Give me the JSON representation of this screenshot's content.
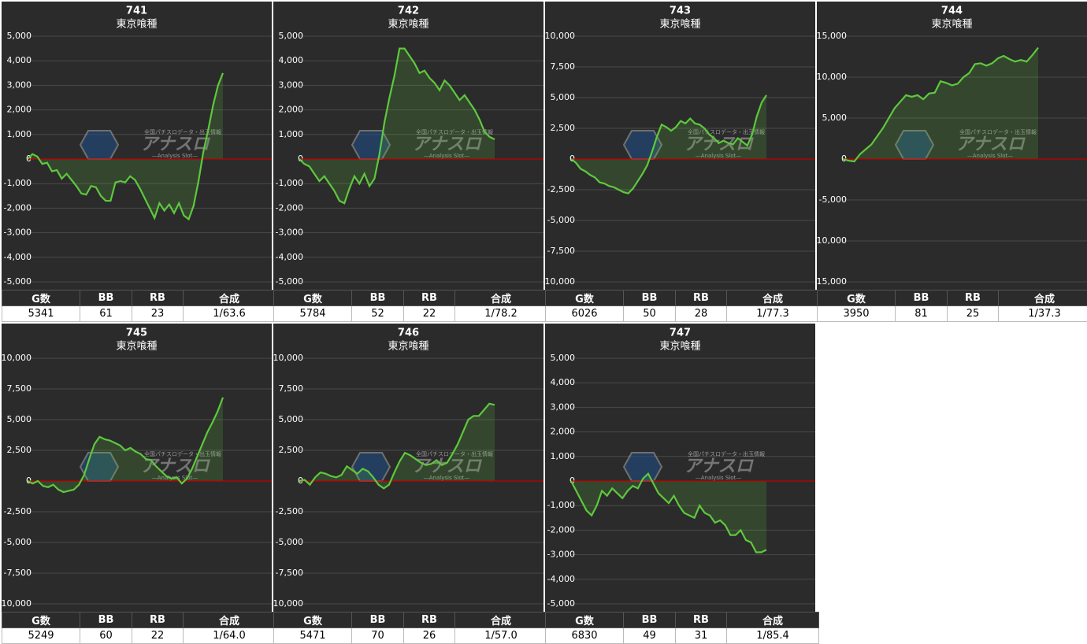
{
  "watermark": {
    "title": "アナスロ",
    "tagline": "全国パチスロデータ・出玉情報",
    "sub": "—Analysis Slot—"
  },
  "chart_data": [
    {
      "type": "line",
      "title": "741",
      "subtitle": "東京喰種",
      "color": "#5ec83e",
      "zero_color": "#c00000",
      "grid": true,
      "ylim": [
        -5000,
        5000
      ],
      "yticks": [
        {
          "value": -5000,
          "label": "-5,000"
        },
        {
          "value": -4000,
          "label": "-4,000"
        },
        {
          "value": -3000,
          "label": "-3,000"
        },
        {
          "value": -2000,
          "label": "-2,000"
        },
        {
          "value": -1000,
          "label": "-1,000"
        },
        0,
        {
          "value": 1000,
          "label": "1,000"
        },
        {
          "value": 2000,
          "label": "2,000"
        },
        {
          "value": 3000,
          "label": "3,000"
        },
        {
          "value": 4000,
          "label": "4,000"
        },
        {
          "value": 5000,
          "label": "5,000"
        }
      ],
      "values": [
        0,
        200,
        100,
        -200,
        -150,
        -500,
        -450,
        -800,
        -600,
        -850,
        -1100,
        -1400,
        -1450,
        -1100,
        -1150,
        -1500,
        -1700,
        -1700,
        -950,
        -900,
        -950,
        -700,
        -850,
        -1200,
        -1600,
        -2000,
        -2400,
        -1800,
        -2100,
        -1850,
        -2200,
        -1800,
        -2300,
        -2450,
        -1900,
        -900,
        300,
        1200,
        2200,
        3000,
        3500
      ],
      "table": {
        "columns": [
          "G数",
          "BB",
          "RB",
          "合成"
        ],
        "row": [
          5341,
          61,
          23,
          "1/63.6"
        ]
      }
    },
    {
      "type": "line",
      "title": "742",
      "subtitle": "東京喰種",
      "color": "#5ec83e",
      "zero_color": "#c00000",
      "grid": true,
      "ylim": [
        -5000,
        5000
      ],
      "yticks": [
        {
          "value": -5000,
          "label": "-5,000"
        },
        {
          "value": -4000,
          "label": "-4,000"
        },
        {
          "value": -3000,
          "label": "-3,000"
        },
        {
          "value": -2000,
          "label": "-2,000"
        },
        {
          "value": -1000,
          "label": "-1,000"
        },
        0,
        {
          "value": 1000,
          "label": "1,000"
        },
        {
          "value": 2000,
          "label": "2,000"
        },
        {
          "value": 3000,
          "label": "3,000"
        },
        {
          "value": 4000,
          "label": "4,000"
        },
        {
          "value": 5000,
          "label": "5,000"
        }
      ],
      "values": [
        0,
        -200,
        -300,
        -600,
        -900,
        -700,
        -1000,
        -1300,
        -1700,
        -1800,
        -1200,
        -700,
        -1000,
        -600,
        -1100,
        -800,
        200,
        1500,
        2500,
        3400,
        4500,
        4500,
        4200,
        3900,
        3500,
        3600,
        3300,
        3100,
        2800,
        3200,
        3000,
        2700,
        2400,
        2600,
        2300,
        2000,
        1600,
        1100,
        900,
        800
      ],
      "table": {
        "columns": [
          "G数",
          "BB",
          "RB",
          "合成"
        ],
        "row": [
          5784,
          52,
          22,
          "1/78.2"
        ]
      }
    },
    {
      "type": "line",
      "title": "743",
      "subtitle": "東京喰種",
      "color": "#5ec83e",
      "zero_color": "#c00000",
      "grid": true,
      "ylim": [
        -10000,
        10000
      ],
      "yticks": [
        {
          "value": -10000,
          "label": "-10,000"
        },
        {
          "value": -7500,
          "label": "-7,500"
        },
        {
          "value": -5000,
          "label": "-5,000"
        },
        {
          "value": -2500,
          "label": "-2,500"
        },
        0,
        {
          "value": 2500,
          "label": "2,500"
        },
        {
          "value": 5000,
          "label": "5,000"
        },
        {
          "value": 7500,
          "label": "7,500"
        },
        {
          "value": 10000,
          "label": "10,000"
        }
      ],
      "values": [
        0,
        -300,
        -800,
        -1000,
        -1300,
        -1500,
        -1900,
        -2000,
        -2200,
        -2300,
        -2500,
        -2700,
        -2800,
        -2400,
        -1800,
        -1200,
        -500,
        600,
        1800,
        2800,
        2600,
        2300,
        2600,
        3100,
        2900,
        3300,
        2900,
        2800,
        2500,
        2000,
        1700,
        1300,
        1500,
        1300,
        1200,
        1700,
        1400,
        1100,
        2000,
        3500,
        4600,
        5200
      ],
      "table": {
        "columns": [
          "G数",
          "BB",
          "RB",
          "合成"
        ],
        "row": [
          6026,
          50,
          28,
          "1/77.3"
        ]
      }
    },
    {
      "type": "line",
      "title": "744",
      "subtitle": "東京喰種",
      "color": "#5ec83e",
      "zero_color": "#c00000",
      "grid": true,
      "ylim": [
        -15000,
        15000
      ],
      "yticks": [
        {
          "value": -15000,
          "label": "-15,000"
        },
        {
          "value": -10000,
          "label": "-10,000"
        },
        {
          "value": -5000,
          "label": "-5,000"
        },
        0,
        {
          "value": 5000,
          "label": "5,000"
        },
        {
          "value": 10000,
          "label": "10,000"
        },
        {
          "value": 15000,
          "label": "15,000"
        }
      ],
      "values": [
        0,
        -200,
        -300,
        600,
        1200,
        1800,
        2800,
        3800,
        5000,
        6200,
        7000,
        7800,
        7600,
        7800,
        7300,
        8000,
        8100,
        9500,
        9300,
        9000,
        9200,
        10000,
        10500,
        11600,
        11700,
        11400,
        11700,
        12300,
        12600,
        12200,
        11900,
        12100,
        11900,
        12700,
        13600
      ],
      "table": {
        "columns": [
          "G数",
          "BB",
          "RB",
          "合成"
        ],
        "row": [
          3950,
          81,
          25,
          "1/37.3"
        ]
      }
    },
    {
      "type": "line",
      "title": "745",
      "subtitle": "東京喰種",
      "color": "#5ec83e",
      "zero_color": "#c00000",
      "grid": true,
      "ylim": [
        -10000,
        10000
      ],
      "yticks": [
        {
          "value": -10000,
          "label": "-10,000"
        },
        {
          "value": -7500,
          "label": "-7,500"
        },
        {
          "value": -5000,
          "label": "-5,000"
        },
        {
          "value": -2500,
          "label": "-2,500"
        },
        0,
        {
          "value": 2500,
          "label": "2,500"
        },
        {
          "value": 5000,
          "label": "5,000"
        },
        {
          "value": 7500,
          "label": "7,500"
        },
        {
          "value": 10000,
          "label": "10,000"
        }
      ],
      "values": [
        0,
        -200,
        0,
        -400,
        -500,
        -300,
        -700,
        -900,
        -800,
        -700,
        -300,
        500,
        1800,
        3000,
        3600,
        3400,
        3300,
        3100,
        2900,
        2500,
        2700,
        2400,
        2200,
        1800,
        1700,
        1200,
        800,
        400,
        200,
        300,
        -200,
        200,
        1000,
        2000,
        3000,
        4000,
        4800,
        5700,
        6800
      ],
      "table": {
        "columns": [
          "G数",
          "BB",
          "RB",
          "合成"
        ],
        "row": [
          5249,
          60,
          22,
          "1/64.0"
        ]
      }
    },
    {
      "type": "line",
      "title": "746",
      "subtitle": "東京喰種",
      "color": "#5ec83e",
      "zero_color": "#c00000",
      "grid": true,
      "ylim": [
        -10000,
        10000
      ],
      "yticks": [
        {
          "value": -10000,
          "label": "-10,000"
        },
        {
          "value": -7500,
          "label": "-7,500"
        },
        {
          "value": -5000,
          "label": "-5,000"
        },
        {
          "value": -2500,
          "label": "-2,500"
        },
        0,
        {
          "value": 2500,
          "label": "2,500"
        },
        {
          "value": 5000,
          "label": "5,000"
        },
        {
          "value": 7500,
          "label": "7,500"
        },
        {
          "value": 10000,
          "label": "10,000"
        }
      ],
      "values": [
        0,
        100,
        -300,
        300,
        700,
        600,
        400,
        300,
        500,
        1200,
        900,
        600,
        1000,
        800,
        300,
        -300,
        -600,
        -300,
        700,
        1600,
        2300,
        2100,
        1800,
        1500,
        1300,
        1400,
        1700,
        1300,
        1500,
        2200,
        3000,
        4000,
        5000,
        5300,
        5300,
        5800,
        6300,
        6200
      ],
      "table": {
        "columns": [
          "G数",
          "BB",
          "RB",
          "合成"
        ],
        "row": [
          5471,
          70,
          26,
          "1/57.0"
        ]
      }
    },
    {
      "type": "line",
      "title": "747",
      "subtitle": "東京喰種",
      "color": "#5ec83e",
      "zero_color": "#c00000",
      "grid": true,
      "ylim": [
        -5000,
        5000
      ],
      "yticks": [
        {
          "value": -5000,
          "label": "-5,000"
        },
        {
          "value": -4000,
          "label": "-4,000"
        },
        {
          "value": -3000,
          "label": "-3,000"
        },
        {
          "value": -2000,
          "label": "-2,000"
        },
        {
          "value": -1000,
          "label": "-1,000"
        },
        0,
        {
          "value": 1000,
          "label": "1,000"
        },
        {
          "value": 2000,
          "label": "2,000"
        },
        {
          "value": 3000,
          "label": "3,000"
        },
        {
          "value": 4000,
          "label": "4,000"
        },
        {
          "value": 5000,
          "label": "5,000"
        }
      ],
      "values": [
        0,
        -400,
        -800,
        -1200,
        -1400,
        -1000,
        -400,
        -600,
        -300,
        -500,
        -700,
        -400,
        -200,
        -300,
        100,
        300,
        -100,
        -500,
        -700,
        -900,
        -600,
        -1000,
        -1300,
        -1400,
        -1500,
        -1000,
        -1300,
        -1400,
        -1700,
        -1600,
        -1800,
        -2200,
        -2200,
        -2000,
        -2400,
        -2500,
        -2900,
        -2900,
        -2800
      ],
      "table": {
        "columns": [
          "G数",
          "BB",
          "RB",
          "合成"
        ],
        "row": [
          6830,
          49,
          31,
          "1/85.4"
        ]
      }
    }
  ]
}
